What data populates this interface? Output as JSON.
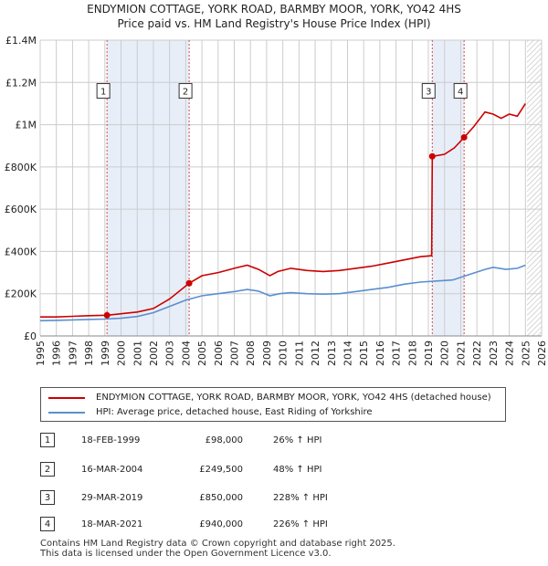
{
  "title_line1": "ENDYMION COTTAGE, YORK ROAD, BARMBY MOOR, YORK, YO42 4HS",
  "title_line2": "Price paid vs. HM Land Registry's House Price Index (HPI)",
  "colors": {
    "property": "#cc0000",
    "hpi": "#5b8fd0",
    "band": "#e8eef8",
    "grid": "#cccccc"
  },
  "chart_data": {
    "type": "line",
    "title": "Price paid vs. HM Land Registry's House Price Index (HPI)",
    "xlabel": "",
    "ylabel": "",
    "xlim": [
      1995,
      2026
    ],
    "ylim": [
      0,
      1400000
    ],
    "x_ticks": [
      1995,
      1996,
      1997,
      1998,
      1999,
      2000,
      2001,
      2002,
      2003,
      2004,
      2005,
      2006,
      2007,
      2008,
      2009,
      2010,
      2011,
      2012,
      2013,
      2014,
      2015,
      2016,
      2017,
      2018,
      2019,
      2020,
      2021,
      2022,
      2023,
      2024,
      2025,
      2026
    ],
    "y_ticks": [
      {
        "value": 0,
        "label": "£0"
      },
      {
        "value": 200000,
        "label": "£200K"
      },
      {
        "value": 400000,
        "label": "£400K"
      },
      {
        "value": 600000,
        "label": "£600K"
      },
      {
        "value": 800000,
        "label": "£800K"
      },
      {
        "value": 1000000,
        "label": "£1M"
      },
      {
        "value": 1200000,
        "label": "£1.2M"
      },
      {
        "value": 1400000,
        "label": "£1.4M"
      }
    ],
    "shaded_bands": [
      [
        1999.13,
        2004.21
      ],
      [
        2019.24,
        2021.21
      ]
    ],
    "forecast_start": 2025.1,
    "series": [
      {
        "name": "ENDYMION COTTAGE, YORK ROAD, BARMBY MOOR, YORK, YO42 4HS (detached house)",
        "color": "#cc0000",
        "points": [
          [
            1995,
            90000
          ],
          [
            1996,
            90000
          ],
          [
            1997,
            93000
          ],
          [
            1998,
            96000
          ],
          [
            1999.13,
            98000
          ],
          [
            2000,
            105000
          ],
          [
            2001,
            113000
          ],
          [
            2002,
            130000
          ],
          [
            2003,
            175000
          ],
          [
            2004.21,
            249500
          ],
          [
            2005,
            285000
          ],
          [
            2006,
            300000
          ],
          [
            2007,
            320000
          ],
          [
            2007.8,
            335000
          ],
          [
            2008.5,
            315000
          ],
          [
            2009.2,
            285000
          ],
          [
            2009.7,
            305000
          ],
          [
            2010.5,
            320000
          ],
          [
            2011.5,
            310000
          ],
          [
            2012.5,
            305000
          ],
          [
            2013.5,
            310000
          ],
          [
            2014.5,
            320000
          ],
          [
            2015.5,
            330000
          ],
          [
            2016.5,
            345000
          ],
          [
            2017.5,
            360000
          ],
          [
            2018.5,
            375000
          ],
          [
            2019.2,
            380000
          ],
          [
            2019.24,
            850000
          ],
          [
            2020,
            860000
          ],
          [
            2020.6,
            890000
          ],
          [
            2021.21,
            940000
          ],
          [
            2021.8,
            990000
          ],
          [
            2022.5,
            1060000
          ],
          [
            2023,
            1050000
          ],
          [
            2023.5,
            1030000
          ],
          [
            2024,
            1050000
          ],
          [
            2024.5,
            1040000
          ],
          [
            2025,
            1100000
          ]
        ]
      },
      {
        "name": "HPI: Average price, detached house, East Riding of Yorkshire",
        "color": "#5b8fd0",
        "points": [
          [
            1995,
            72000
          ],
          [
            1996,
            74000
          ],
          [
            1997,
            76000
          ],
          [
            1998,
            78000
          ],
          [
            1999,
            80000
          ],
          [
            2000,
            84000
          ],
          [
            2001,
            92000
          ],
          [
            2002,
            110000
          ],
          [
            2003,
            140000
          ],
          [
            2004,
            170000
          ],
          [
            2005,
            190000
          ],
          [
            2006,
            200000
          ],
          [
            2007,
            210000
          ],
          [
            2007.8,
            220000
          ],
          [
            2008.5,
            212000
          ],
          [
            2009.2,
            190000
          ],
          [
            2009.8,
            200000
          ],
          [
            2010.5,
            205000
          ],
          [
            2011.5,
            200000
          ],
          [
            2012.5,
            198000
          ],
          [
            2013.5,
            200000
          ],
          [
            2014.5,
            210000
          ],
          [
            2015.5,
            220000
          ],
          [
            2016.5,
            230000
          ],
          [
            2017.5,
            245000
          ],
          [
            2018.5,
            255000
          ],
          [
            2019.5,
            260000
          ],
          [
            2020.5,
            265000
          ],
          [
            2021.5,
            290000
          ],
          [
            2022.5,
            315000
          ],
          [
            2023,
            325000
          ],
          [
            2023.8,
            315000
          ],
          [
            2024.5,
            320000
          ],
          [
            2025,
            335000
          ]
        ]
      }
    ],
    "sales": [
      {
        "label": "1",
        "x": 1999.13,
        "value": 98000
      },
      {
        "label": "2",
        "x": 2004.21,
        "value": 249500
      },
      {
        "label": "3",
        "x": 2019.24,
        "value": 850000
      },
      {
        "label": "4",
        "x": 2021.21,
        "value": 940000
      }
    ],
    "box_label_value": 1160000
  },
  "legend": {
    "property_label": "ENDYMION COTTAGE, YORK ROAD, BARMBY MOOR, YORK, YO42 4HS (detached house)",
    "hpi_label": "HPI: Average price, detached house, East Riding of Yorkshire"
  },
  "sales_table": [
    {
      "num": "1",
      "date": "18-FEB-1999",
      "price": "£98,000",
      "hpi": "26% ↑ HPI"
    },
    {
      "num": "2",
      "date": "16-MAR-2004",
      "price": "£249,500",
      "hpi": "48% ↑ HPI"
    },
    {
      "num": "3",
      "date": "29-MAR-2019",
      "price": "£850,000",
      "hpi": "228% ↑ HPI"
    },
    {
      "num": "4",
      "date": "18-MAR-2021",
      "price": "£940,000",
      "hpi": "226% ↑ HPI"
    }
  ],
  "footer": {
    "line1": "Contains HM Land Registry data © Crown copyright and database right 2025.",
    "line2": "This data is licensed under the Open Government Licence v3.0."
  }
}
